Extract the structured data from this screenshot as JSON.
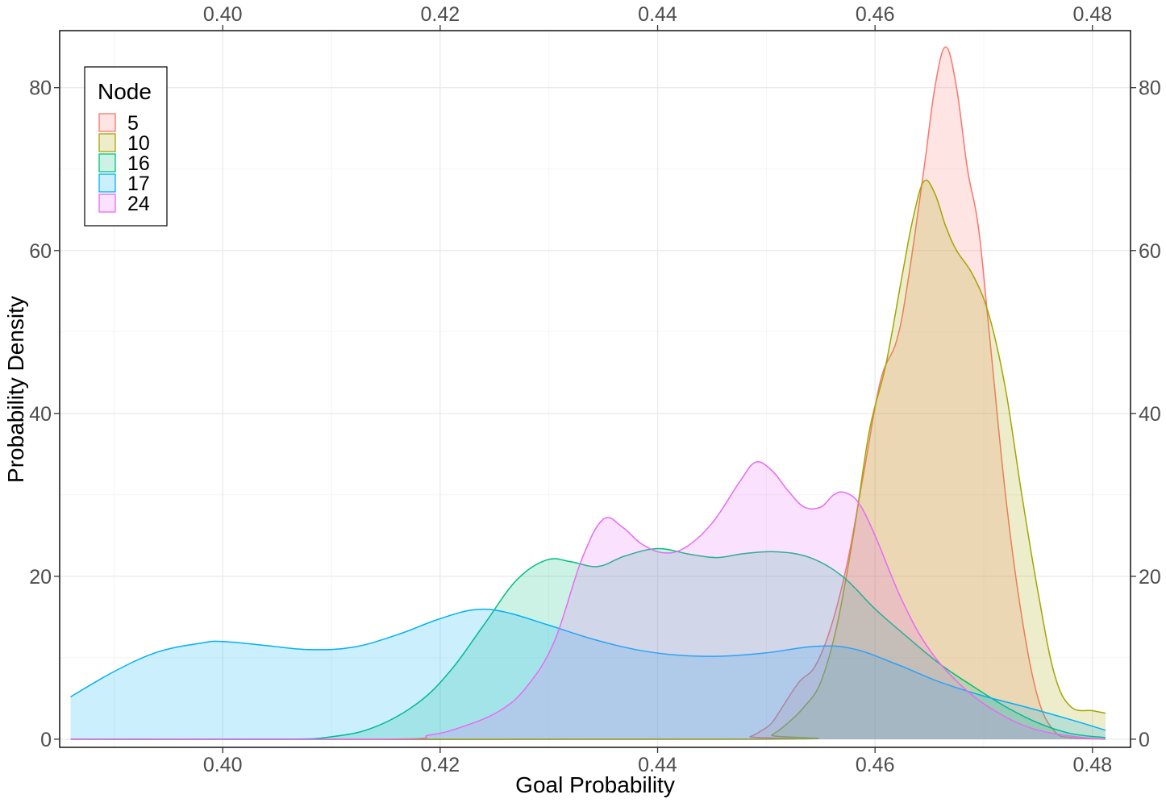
{
  "chart_data": {
    "type": "area",
    "subtype": "density",
    "title": "",
    "xlabel": "Goal Probability",
    "ylabel": "Probability Density",
    "xlim": [
      0.385,
      0.4835
    ],
    "ylim": [
      -1,
      87
    ],
    "x_ticks": [
      0.4,
      0.42,
      0.44,
      0.46,
      0.48
    ],
    "x_tick_labels": [
      "0.40",
      "0.42",
      "0.44",
      "0.46",
      "0.48"
    ],
    "y_ticks": [
      0,
      20,
      40,
      60,
      80
    ],
    "y_tick_labels": [
      "0",
      "20",
      "40",
      "60",
      "80"
    ],
    "secondary_axes": true,
    "grid": true,
    "legend": {
      "title": "Node",
      "position": "top-left"
    },
    "series": [
      {
        "name": "5",
        "color": "#F8766D",
        "points": [
          [
            0.386,
            0
          ],
          [
            0.4475,
            0
          ],
          [
            0.4485,
            0.3
          ],
          [
            0.4495,
            1
          ],
          [
            0.4505,
            2
          ],
          [
            0.4515,
            4
          ],
          [
            0.453,
            7
          ],
          [
            0.4545,
            9
          ],
          [
            0.456,
            14
          ],
          [
            0.4575,
            22
          ],
          [
            0.459,
            33
          ],
          [
            0.4605,
            44
          ],
          [
            0.462,
            49
          ],
          [
            0.463,
            56
          ],
          [
            0.4645,
            70
          ],
          [
            0.4655,
            80
          ],
          [
            0.4665,
            85
          ],
          [
            0.4675,
            80
          ],
          [
            0.4685,
            70
          ],
          [
            0.4695,
            63
          ],
          [
            0.4705,
            50
          ],
          [
            0.472,
            30
          ],
          [
            0.4735,
            15
          ],
          [
            0.475,
            5
          ],
          [
            0.4765,
            1
          ],
          [
            0.478,
            0.2
          ],
          [
            0.4812,
            0
          ]
        ]
      },
      {
        "name": "10",
        "color": "#A3A500",
        "points": [
          [
            0.386,
            0
          ],
          [
            0.4495,
            0
          ],
          [
            0.4505,
            0.5
          ],
          [
            0.452,
            2
          ],
          [
            0.4535,
            4
          ],
          [
            0.455,
            7
          ],
          [
            0.4565,
            14
          ],
          [
            0.458,
            25
          ],
          [
            0.4595,
            38
          ],
          [
            0.461,
            46
          ],
          [
            0.4625,
            57
          ],
          [
            0.4635,
            64
          ],
          [
            0.4645,
            68.5
          ],
          [
            0.4655,
            67
          ],
          [
            0.4665,
            63
          ],
          [
            0.4675,
            60
          ],
          [
            0.469,
            57
          ],
          [
            0.4705,
            52
          ],
          [
            0.472,
            43
          ],
          [
            0.4735,
            30
          ],
          [
            0.475,
            18
          ],
          [
            0.4765,
            8
          ],
          [
            0.478,
            4
          ],
          [
            0.48,
            3.5
          ],
          [
            0.4812,
            3.2
          ]
        ]
      },
      {
        "name": "16",
        "color": "#00BF7D",
        "points": [
          [
            0.386,
            0
          ],
          [
            0.405,
            0
          ],
          [
            0.41,
            0.3
          ],
          [
            0.414,
            1.5
          ],
          [
            0.418,
            4.5
          ],
          [
            0.421,
            8.5
          ],
          [
            0.424,
            14
          ],
          [
            0.427,
            19.5
          ],
          [
            0.4298,
            22
          ],
          [
            0.432,
            21.8
          ],
          [
            0.4345,
            21.2
          ],
          [
            0.437,
            22.5
          ],
          [
            0.44,
            23.4
          ],
          [
            0.443,
            22.7
          ],
          [
            0.4455,
            22.3
          ],
          [
            0.448,
            22.8
          ],
          [
            0.451,
            23
          ],
          [
            0.454,
            22.3
          ],
          [
            0.457,
            20
          ],
          [
            0.46,
            16
          ],
          [
            0.463,
            12.5
          ],
          [
            0.466,
            9.2
          ],
          [
            0.469,
            6.5
          ],
          [
            0.472,
            4
          ],
          [
            0.475,
            2
          ],
          [
            0.478,
            0.7
          ],
          [
            0.4812,
            0.2
          ]
        ]
      },
      {
        "name": "17",
        "color": "#00B0F6",
        "points": [
          [
            0.386,
            5.2
          ],
          [
            0.39,
            8.3
          ],
          [
            0.394,
            10.7
          ],
          [
            0.398,
            11.8
          ],
          [
            0.4,
            12
          ],
          [
            0.404,
            11.5
          ],
          [
            0.408,
            11
          ],
          [
            0.412,
            11.3
          ],
          [
            0.416,
            12.8
          ],
          [
            0.42,
            14.8
          ],
          [
            0.4232,
            15.9
          ],
          [
            0.426,
            15.6
          ],
          [
            0.43,
            14
          ],
          [
            0.434,
            12.3
          ],
          [
            0.438,
            11
          ],
          [
            0.442,
            10.3
          ],
          [
            0.446,
            10.2
          ],
          [
            0.45,
            10.6
          ],
          [
            0.4545,
            11.4
          ],
          [
            0.458,
            11.1
          ],
          [
            0.462,
            9.2
          ],
          [
            0.466,
            7
          ],
          [
            0.47,
            5.3
          ],
          [
            0.474,
            3.9
          ],
          [
            0.478,
            2.4
          ],
          [
            0.4812,
            1.1
          ]
        ]
      },
      {
        "name": "24",
        "color": "#E76BF3",
        "points": [
          [
            0.386,
            0
          ],
          [
            0.415,
            0
          ],
          [
            0.419,
            0.5
          ],
          [
            0.422,
            1.5
          ],
          [
            0.4255,
            3.5
          ],
          [
            0.428,
            6.5
          ],
          [
            0.4305,
            12
          ],
          [
            0.433,
            22
          ],
          [
            0.435,
            27
          ],
          [
            0.4368,
            26
          ],
          [
            0.4385,
            24
          ],
          [
            0.4405,
            22.9
          ],
          [
            0.4425,
            23.5
          ],
          [
            0.445,
            26.5
          ],
          [
            0.4475,
            31.5
          ],
          [
            0.449,
            34
          ],
          [
            0.4505,
            33
          ],
          [
            0.452,
            30.5
          ],
          [
            0.4535,
            28.5
          ],
          [
            0.455,
            28.5
          ],
          [
            0.4562,
            30
          ],
          [
            0.4572,
            30.3
          ],
          [
            0.4585,
            29
          ],
          [
            0.46,
            25
          ],
          [
            0.4625,
            17
          ],
          [
            0.465,
            11
          ],
          [
            0.468,
            6.5
          ],
          [
            0.471,
            3.5
          ],
          [
            0.4745,
            1.3
          ],
          [
            0.4785,
            0.3
          ],
          [
            0.4812,
            0
          ]
        ]
      }
    ]
  }
}
